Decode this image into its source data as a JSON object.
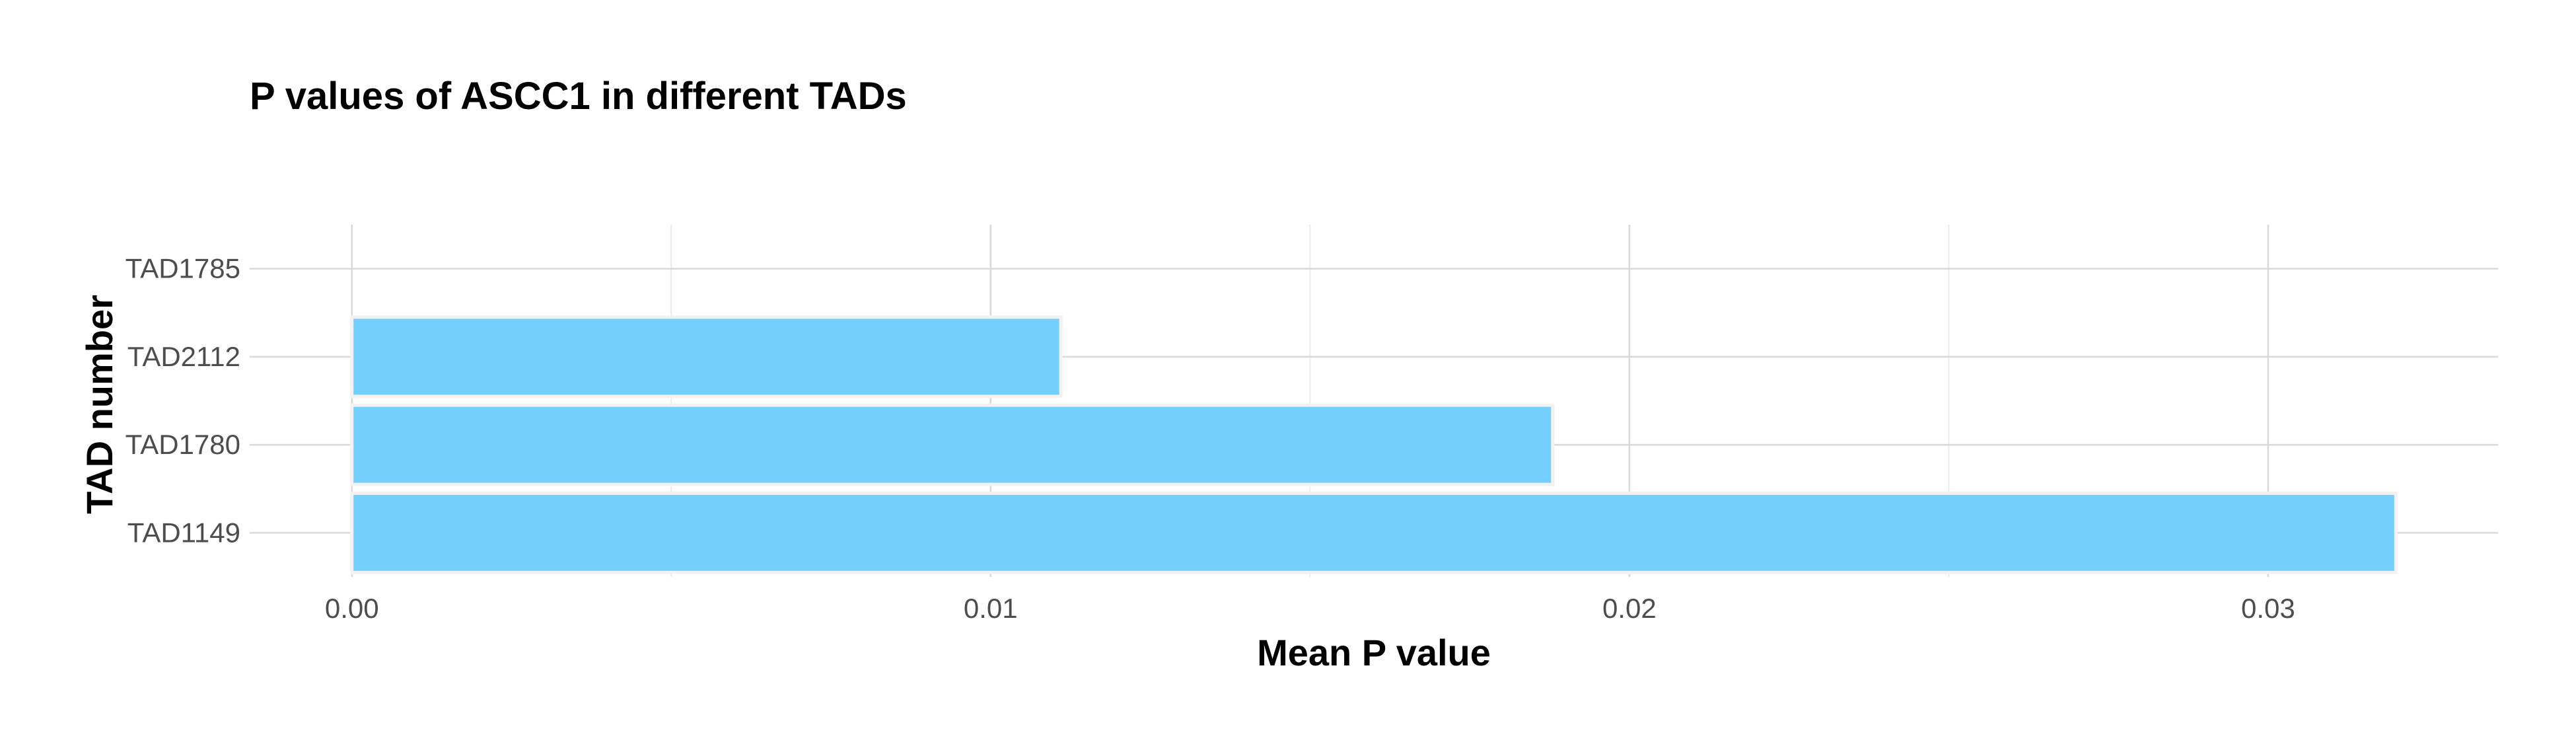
{
  "chart_data": {
    "type": "bar",
    "orientation": "horizontal",
    "title": "P values of ASCC1 in different TADs",
    "xlabel": "Mean P value",
    "ylabel": "TAD number",
    "categories": [
      "TAD1149",
      "TAD1780",
      "TAD2112",
      "TAD1785"
    ],
    "values": [
      0.032,
      0.0188,
      0.0111,
      0
    ],
    "xlim": [
      -0.0016,
      0.0336
    ],
    "xticks": [
      0,
      0.01,
      0.02,
      0.03
    ],
    "xtick_labels": [
      "0.00",
      "0.01",
      "0.02",
      "0.03"
    ],
    "grid": true,
    "legend": "none",
    "bar_color": "#75CFFC",
    "bar_outline_color": "#F2F2F2"
  }
}
